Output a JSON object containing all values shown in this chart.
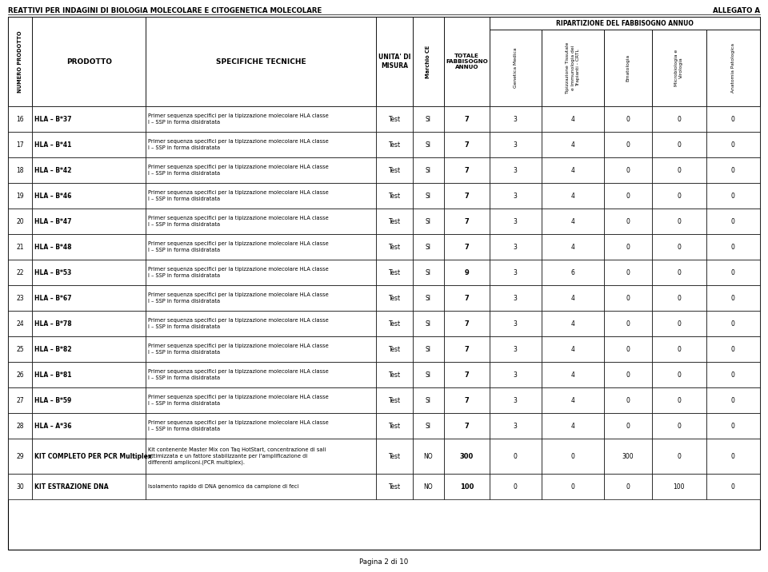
{
  "title_left": "REATTIVI PER INDAGINI DI BIOLOGIA MOLECOLARE E CITOGENETICA MOLECOLARE",
  "title_right": "ALLEGATO A",
  "footer": "Pagina 2 di 10",
  "col_headers": {
    "num": "NUMERO PRODOTTO",
    "prodotto": "PRODOTTO",
    "specifiche": "SPECIFICHE TECNICHE",
    "unita": "UNITA' DI\nMISURA",
    "marchio": "Marchio CE",
    "totale": "TOTALE\nFABBISOGNO\nANNUO",
    "ripartizione": "RIPARTIZIONE DEL FABBISOGNO ANNUO",
    "gen_med": "Genetica Medica",
    "tip_tiss": "Tipizzazione Tissutale\ne Immunologia dei\nTrapianti - CRTL",
    "emat": "Ematologia",
    "micro": "Microbiologia e\nVirologia",
    "anat": "Anatomia Patologica"
  },
  "rows": [
    {
      "num": "16",
      "prodotto": "HLA – B*37",
      "specifiche": "Primer sequenza specifici per la tipizzazione molecolare HLA classe\nI – SSP in forma disidratata",
      "unita": "Test",
      "marchio": "SI",
      "totale": "7",
      "gen_med": "3",
      "tip_tiss": "4",
      "emat": "0",
      "micro": "0",
      "anat": "0"
    },
    {
      "num": "17",
      "prodotto": "HLA – B*41",
      "specifiche": "Primer sequenza specifici per la tipizzazione molecolare HLA classe\nI – SSP in forma disidratata",
      "unita": "Test",
      "marchio": "SI",
      "totale": "7",
      "gen_med": "3",
      "tip_tiss": "4",
      "emat": "0",
      "micro": "0",
      "anat": "0"
    },
    {
      "num": "18",
      "prodotto": "HLA – B*42",
      "specifiche": "Primer sequenza specifici per la tipizzazione molecolare HLA classe\nI – SSP in forma disidratata",
      "unita": "Test",
      "marchio": "SI",
      "totale": "7",
      "gen_med": "3",
      "tip_tiss": "4",
      "emat": "0",
      "micro": "0",
      "anat": "0"
    },
    {
      "num": "19",
      "prodotto": "HLA – B*46",
      "specifiche": "Primer sequenza specifici per la tipizzazione molecolare HLA classe\nI – SSP in forma disidratata",
      "unita": "Test",
      "marchio": "SI",
      "totale": "7",
      "gen_med": "3",
      "tip_tiss": "4",
      "emat": "0",
      "micro": "0",
      "anat": "0"
    },
    {
      "num": "20",
      "prodotto": "HLA – B*47",
      "specifiche": "Primer sequenza specifici per la tipizzazione molecolare HLA classe\nI – SSP in forma disidratata",
      "unita": "Test",
      "marchio": "SI",
      "totale": "7",
      "gen_med": "3",
      "tip_tiss": "4",
      "emat": "0",
      "micro": "0",
      "anat": "0"
    },
    {
      "num": "21",
      "prodotto": "HLA – B*48",
      "specifiche": "Primer sequenza specifici per la tipizzazione molecolare HLA classe\nI – SSP in forma disidratata",
      "unita": "Test",
      "marchio": "SI",
      "totale": "7",
      "gen_med": "3",
      "tip_tiss": "4",
      "emat": "0",
      "micro": "0",
      "anat": "0"
    },
    {
      "num": "22",
      "prodotto": "HLA – B*53",
      "specifiche": "Primer sequenza specifici per la tipizzazione molecolare HLA classe\nI – SSP in forma disidratata",
      "unita": "Test",
      "marchio": "SI",
      "totale": "9",
      "gen_med": "3",
      "tip_tiss": "6",
      "emat": "0",
      "micro": "0",
      "anat": "0"
    },
    {
      "num": "23",
      "prodotto": "HLA – B*67",
      "specifiche": "Primer sequenza specifici per la tipizzazione molecolare HLA classe\nI – SSP in forma disidratata",
      "unita": "Test",
      "marchio": "SI",
      "totale": "7",
      "gen_med": "3",
      "tip_tiss": "4",
      "emat": "0",
      "micro": "0",
      "anat": "0"
    },
    {
      "num": "24",
      "prodotto": "HLA – B*78",
      "specifiche": "Primer sequenza specifici per la tipizzazione molecolare HLA classe\nI – SSP in forma disidratata",
      "unita": "Test",
      "marchio": "SI",
      "totale": "7",
      "gen_med": "3",
      "tip_tiss": "4",
      "emat": "0",
      "micro": "0",
      "anat": "0"
    },
    {
      "num": "25",
      "prodotto": "HLA – B*82",
      "specifiche": "Primer sequenza specifici per la tipizzazione molecolare HLA classe\nI – SSP in forma disidratata",
      "unita": "Test",
      "marchio": "SI",
      "totale": "7",
      "gen_med": "3",
      "tip_tiss": "4",
      "emat": "0",
      "micro": "0",
      "anat": "0"
    },
    {
      "num": "26",
      "prodotto": "HLA – B*81",
      "specifiche": "Primer sequenza specifici per la tipizzazione molecolare HLA classe\nI – SSP in forma disidratata",
      "unita": "Test",
      "marchio": "SI",
      "totale": "7",
      "gen_med": "3",
      "tip_tiss": "4",
      "emat": "0",
      "micro": "0",
      "anat": "0"
    },
    {
      "num": "27",
      "prodotto": "HLA – B*59",
      "specifiche": "Primer sequenza specifici per la tipizzazione molecolare HLA classe\nI – SSP in forma disidratata",
      "unita": "Test",
      "marchio": "SI",
      "totale": "7",
      "gen_med": "3",
      "tip_tiss": "4",
      "emat": "0",
      "micro": "0",
      "anat": "0"
    },
    {
      "num": "28",
      "prodotto": "HLA – A*36",
      "specifiche": "Primer sequenza specifici per la tipizzazione molecolare HLA classe\nI – SSP in forma disidratata",
      "unita": "Test",
      "marchio": "SI",
      "totale": "7",
      "gen_med": "3",
      "tip_tiss": "4",
      "emat": "0",
      "micro": "0",
      "anat": "0"
    },
    {
      "num": "29",
      "prodotto": "KIT COMPLETO PER PCR Multiplex",
      "specifiche": "Kit contenente Master Mix con Taq HotStart, concentrazione di sali\nottimizzata e un fattore stabilizzante per l'amplificazione di\ndifferenti ampliconi.(PCR multiplex).",
      "unita": "Test",
      "marchio": "NO",
      "totale": "300",
      "gen_med": "0",
      "tip_tiss": "0",
      "emat": "300",
      "micro": "0",
      "anat": "0"
    },
    {
      "num": "30",
      "prodotto": "KIT ESTRAZIONE DNA",
      "specifiche": "Isolamento rapido di DNA genomico da campione di feci",
      "unita": "Test",
      "marchio": "NO",
      "totale": "100",
      "gen_med": "0",
      "tip_tiss": "0",
      "emat": "0",
      "micro": "100",
      "anat": "0"
    }
  ],
  "bg_color": "#ffffff",
  "border_color": "#000000"
}
